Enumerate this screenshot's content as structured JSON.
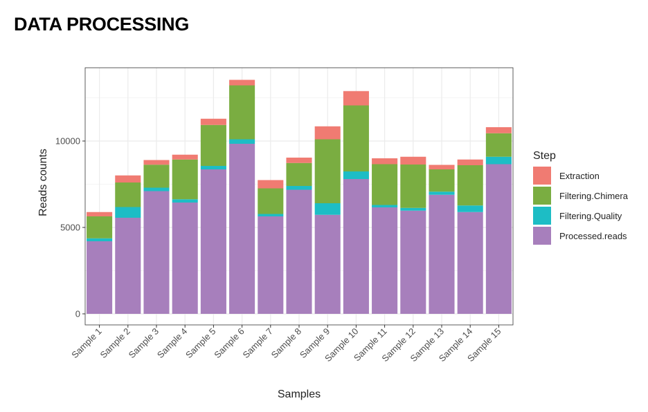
{
  "title": "DATA PROCESSING",
  "chart_data": {
    "type": "bar",
    "stacked": true,
    "title": "",
    "xlabel": "Samples",
    "ylabel": "Reads counts",
    "ylim": [
      -640,
      14240
    ],
    "yticks": [
      0,
      5000,
      10000
    ],
    "grid": true,
    "legend_title": "Step",
    "legend_position": "right",
    "categories": [
      "Sample 1",
      "Sample 2",
      "Sample 3",
      "Sample 4",
      "Sample 5",
      "Sample 6",
      "Sample 7",
      "Sample 8",
      "Sample 9",
      "Sample 10",
      "Sample 11",
      "Sample 12",
      "Sample 13",
      "Sample 14",
      "Sample 15"
    ],
    "series": [
      {
        "name": "Processed.reads",
        "color": "#A77FBC",
        "values": [
          4200,
          5560,
          7100,
          6440,
          8360,
          9840,
          5640,
          7180,
          5730,
          7800,
          6160,
          5970,
          6890,
          5890,
          8660
        ]
      },
      {
        "name": "Filtering.Quality",
        "color": "#1DBDC5",
        "values": [
          170,
          620,
          200,
          190,
          200,
          260,
          140,
          220,
          670,
          440,
          140,
          160,
          180,
          380,
          430
        ]
      },
      {
        "name": "Filtering.Chimera",
        "color": "#7AAD41",
        "values": [
          1270,
          1420,
          1330,
          2300,
          2370,
          3120,
          1480,
          1330,
          3700,
          3820,
          2360,
          2510,
          1290,
          2330,
          1360
        ]
      },
      {
        "name": "Extraction",
        "color": "#F07B72",
        "values": [
          250,
          410,
          270,
          280,
          360,
          320,
          480,
          310,
          750,
          830,
          340,
          450,
          260,
          330,
          350
        ]
      }
    ],
    "legend_order": [
      "Extraction",
      "Filtering.Chimera",
      "Filtering.Quality",
      "Processed.reads"
    ]
  }
}
